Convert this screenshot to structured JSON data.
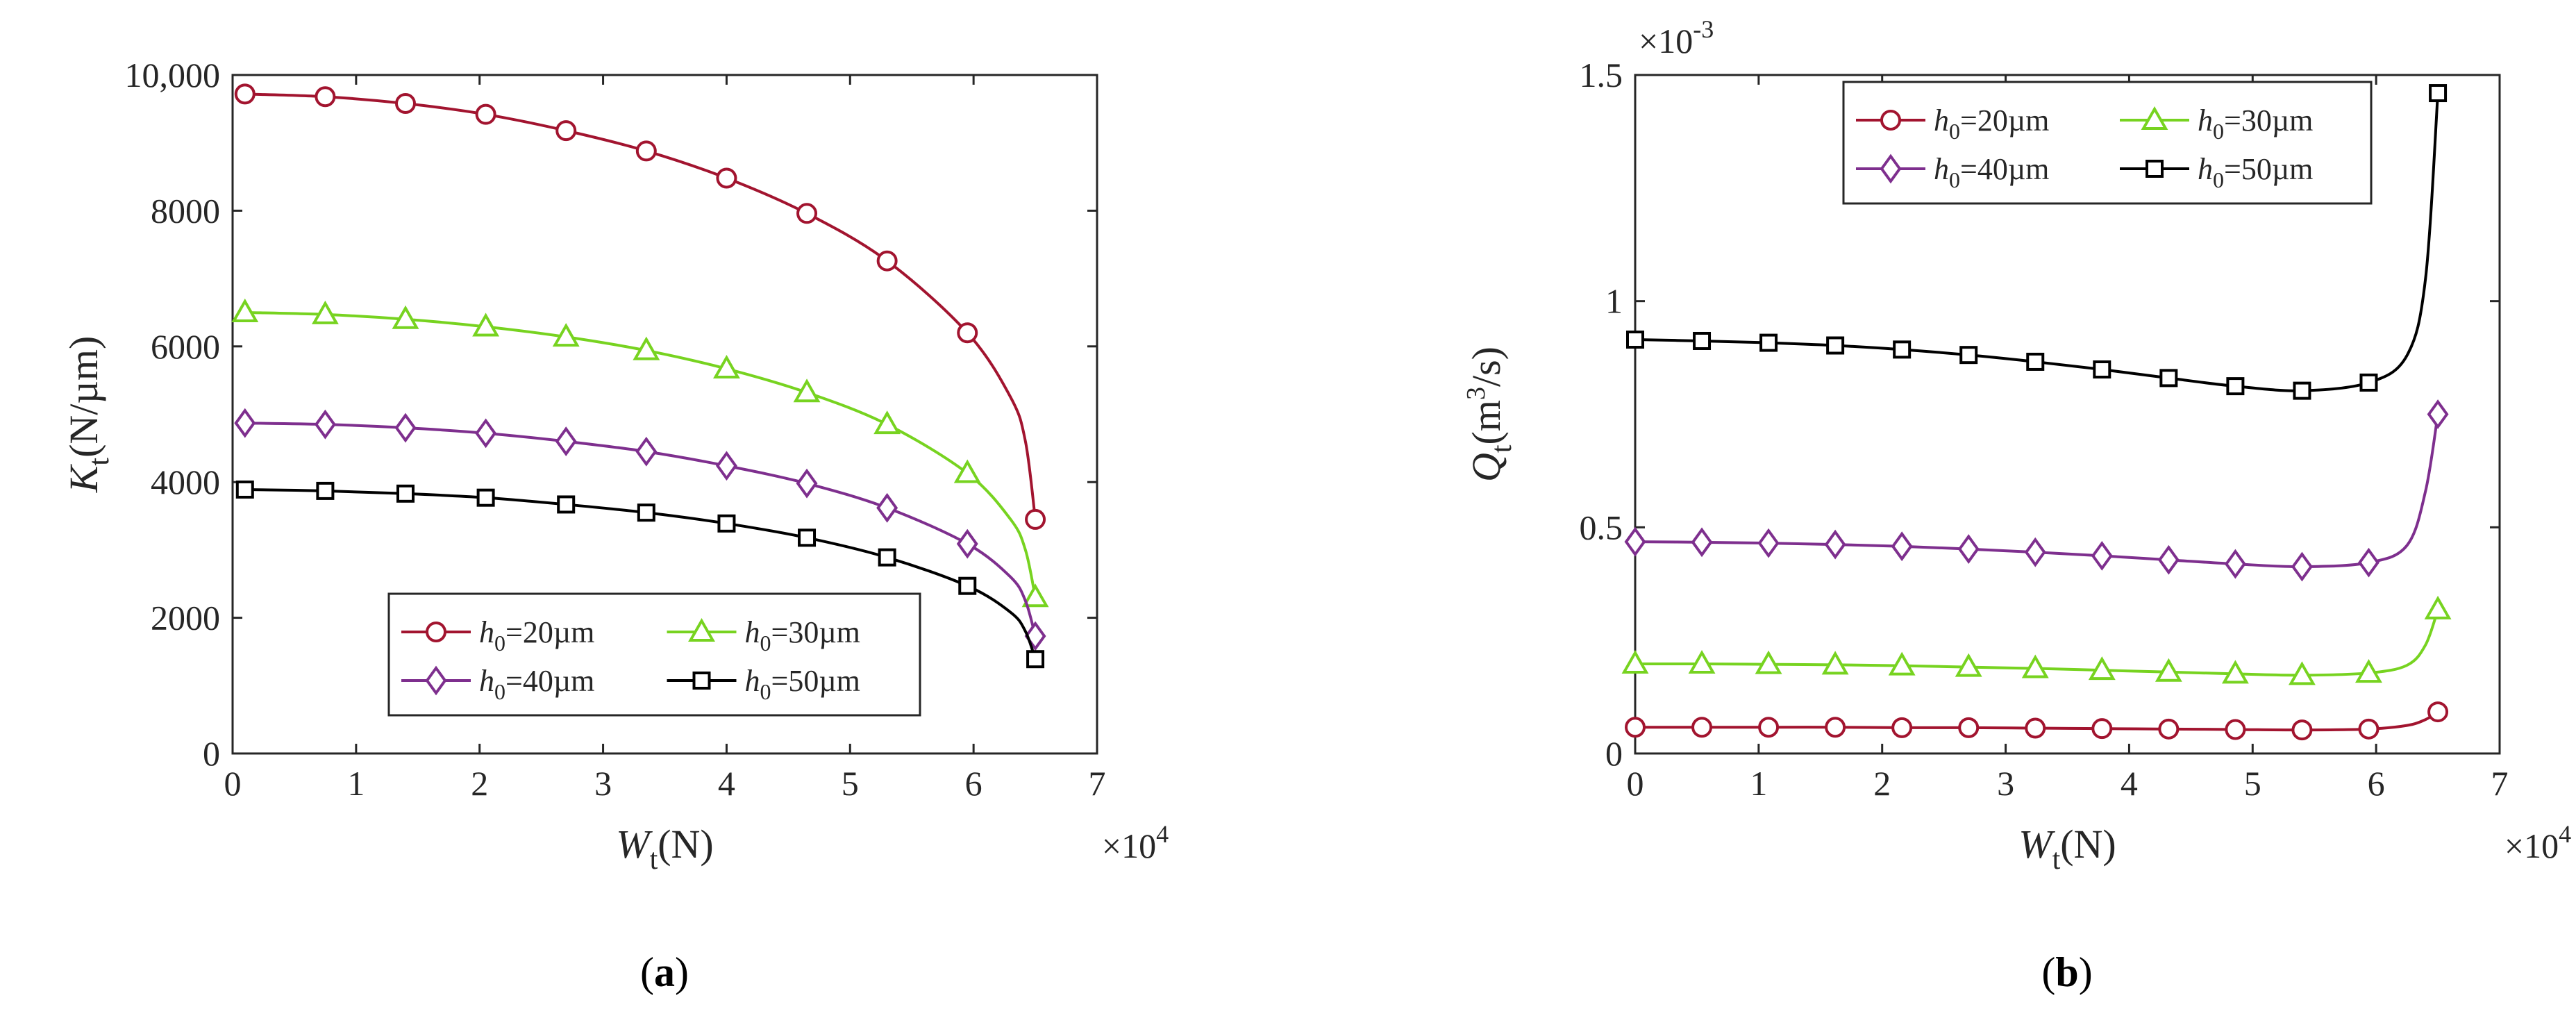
{
  "chart_data": [
    {
      "type": "line",
      "panel": "(a)",
      "caption_open": "(",
      "caption_letter": "a",
      "caption_close": ")",
      "xlabel_main": "W",
      "xlabel_sub": "t",
      "xlabel_unit": "(N)",
      "ylabel_main": "K",
      "ylabel_sub": "t",
      "ylabel_unit": "(N/µm)",
      "xlim": [
        0,
        70000
      ],
      "ylim": [
        0,
        10000
      ],
      "x_multiplier_base": "×10",
      "x_multiplier_exp": "4",
      "x_ticks": [
        {
          "v": 0,
          "label": "0"
        },
        {
          "v": 10000,
          "label": "1"
        },
        {
          "v": 20000,
          "label": "2"
        },
        {
          "v": 30000,
          "label": "3"
        },
        {
          "v": 40000,
          "label": "4"
        },
        {
          "v": 50000,
          "label": "5"
        },
        {
          "v": 60000,
          "label": "6"
        },
        {
          "v": 70000,
          "label": "7"
        }
      ],
      "y_ticks": [
        {
          "v": 0,
          "label": "0"
        },
        {
          "v": 2000,
          "label": "2000"
        },
        {
          "v": 4000,
          "label": "4000"
        },
        {
          "v": 6000,
          "label": "6000"
        },
        {
          "v": 8000,
          "label": "8000"
        },
        {
          "v": 10000,
          "label": "10,000"
        }
      ],
      "legend_position": "bottom-right",
      "series": [
        {
          "name": "h0=20µm",
          "label_main": "h",
          "label_sub": "0",
          "label_rest": "=20µm",
          "color": "#a2142f",
          "marker": "circle",
          "x": [
            1000,
            7500,
            14000,
            20500,
            27000,
            33500,
            40000,
            46500,
            53000,
            59500,
            63000,
            64200,
            65000
          ],
          "y": [
            9720,
            9680,
            9580,
            9420,
            9180,
            8880,
            8480,
            7960,
            7260,
            6200,
            5250,
            4600,
            3450
          ],
          "marker_idx": [
            0,
            1,
            2,
            3,
            4,
            5,
            6,
            7,
            8,
            9,
            12
          ]
        },
        {
          "name": "h0=30µm",
          "label_main": "h",
          "label_sub": "0",
          "label_rest": "=30µm",
          "color": "#77d320",
          "marker": "triangle",
          "x": [
            1000,
            7500,
            14000,
            20500,
            27000,
            33500,
            40000,
            46500,
            53000,
            59500,
            63000,
            64200,
            65000
          ],
          "y": [
            6500,
            6470,
            6400,
            6290,
            6140,
            5940,
            5670,
            5320,
            4850,
            4130,
            3450,
            3000,
            2300
          ],
          "marker_idx": [
            0,
            1,
            2,
            3,
            4,
            5,
            6,
            7,
            8,
            9,
            12
          ]
        },
        {
          "name": "h0=40µm",
          "label_main": "h",
          "label_sub": "0",
          "label_rest": "=40µm",
          "color": "#7e2f8e",
          "marker": "diamond",
          "x": [
            1000,
            7500,
            14000,
            20500,
            27000,
            33500,
            40000,
            46500,
            53000,
            59500,
            63000,
            64200,
            65000
          ],
          "y": [
            4870,
            4850,
            4800,
            4720,
            4600,
            4450,
            4240,
            3980,
            3620,
            3090,
            2600,
            2250,
            1730
          ],
          "marker_idx": [
            0,
            1,
            2,
            3,
            4,
            5,
            6,
            7,
            8,
            9,
            12
          ]
        },
        {
          "name": "h0=50µm",
          "label_main": "h",
          "label_sub": "0",
          "label_rest": "=50µm",
          "color": "#000000",
          "marker": "square",
          "x": [
            1000,
            7500,
            14000,
            20500,
            27000,
            33500,
            40000,
            46500,
            53000,
            59500,
            63000,
            64200,
            65000
          ],
          "y": [
            3890,
            3870,
            3830,
            3770,
            3670,
            3550,
            3390,
            3180,
            2890,
            2470,
            2080,
            1800,
            1390
          ],
          "marker_idx": [
            0,
            1,
            2,
            3,
            4,
            5,
            6,
            7,
            8,
            9,
            12
          ]
        }
      ]
    },
    {
      "type": "line",
      "panel": "(b)",
      "caption_open": "(",
      "caption_letter": "b",
      "caption_close": ")",
      "xlabel_main": "W",
      "xlabel_sub": "t",
      "xlabel_unit": "(N)",
      "ylabel_main": "Q",
      "ylabel_sub": "t",
      "ylabel_unit_pre": "(m",
      "ylabel_unit_sup": "3",
      "ylabel_unit_post": "/s)",
      "xlim": [
        0,
        70000
      ],
      "ylim": [
        0,
        0.0015
      ],
      "x_multiplier_base": "×10",
      "x_multiplier_exp": "4",
      "y_multiplier_base": "×10",
      "y_multiplier_exp": "-3",
      "x_ticks": [
        {
          "v": 0,
          "label": "0"
        },
        {
          "v": 10000,
          "label": "1"
        },
        {
          "v": 20000,
          "label": "2"
        },
        {
          "v": 30000,
          "label": "3"
        },
        {
          "v": 40000,
          "label": "4"
        },
        {
          "v": 50000,
          "label": "5"
        },
        {
          "v": 60000,
          "label": "6"
        },
        {
          "v": 70000,
          "label": "7"
        }
      ],
      "y_ticks": [
        {
          "v": 0,
          "label": "0"
        },
        {
          "v": 0.0005,
          "label": "0.5"
        },
        {
          "v": 0.001,
          "label": "1"
        },
        {
          "v": 0.0015,
          "label": "1.5"
        }
      ],
      "legend_position": "top-right",
      "series": [
        {
          "name": "h0=20µm",
          "label_main": "h",
          "label_sub": "0",
          "label_rest": "=20µm",
          "color": "#a2142f",
          "marker": "circle",
          "x": [
            0,
            5400,
            10800,
            16200,
            21600,
            27000,
            32400,
            37800,
            43200,
            48600,
            54000,
            59400,
            62500,
            64000,
            65000
          ],
          "y": [
            5.8e-05,
            5.8e-05,
            5.8e-05,
            5.8e-05,
            5.7e-05,
            5.7e-05,
            5.6e-05,
            5.5e-05,
            5.4e-05,
            5.3e-05,
            5.2e-05,
            5.4e-05,
            6.2e-05,
            7.5e-05,
            9.2e-05
          ],
          "marker_idx": [
            0,
            1,
            2,
            3,
            4,
            5,
            6,
            7,
            8,
            9,
            10,
            11,
            14
          ]
        },
        {
          "name": "h0=30µm",
          "label_main": "h",
          "label_sub": "0",
          "label_rest": "=30µm",
          "color": "#77d320",
          "marker": "triangle",
          "x": [
            0,
            5400,
            10800,
            16200,
            21600,
            27000,
            32400,
            37800,
            43200,
            48600,
            54000,
            59400,
            62500,
            64000,
            65000
          ],
          "y": [
            0.000198,
            0.000198,
            0.000197,
            0.000196,
            0.000194,
            0.000191,
            0.000188,
            0.000184,
            0.00018,
            0.000176,
            0.000173,
            0.000178,
            0.000195,
            0.00024,
            0.000318
          ],
          "marker_idx": [
            0,
            1,
            2,
            3,
            4,
            5,
            6,
            7,
            8,
            9,
            10,
            11,
            14
          ]
        },
        {
          "name": "h0=40µm",
          "label_main": "h",
          "label_sub": "0",
          "label_rest": "=40µm",
          "color": "#7e2f8e",
          "marker": "diamond",
          "x": [
            0,
            5400,
            10800,
            16200,
            21600,
            27000,
            32400,
            37800,
            43200,
            48600,
            54000,
            59400,
            62500,
            64000,
            65000
          ],
          "y": [
            0.000468,
            0.000467,
            0.000465,
            0.000462,
            0.000458,
            0.000452,
            0.000445,
            0.000437,
            0.000428,
            0.000419,
            0.000413,
            0.000422,
            0.00046,
            0.00058,
            0.00075
          ],
          "marker_idx": [
            0,
            1,
            2,
            3,
            4,
            5,
            6,
            7,
            8,
            9,
            10,
            11,
            14
          ]
        },
        {
          "name": "h0=50µm",
          "label_main": "h",
          "label_sub": "0",
          "label_rest": "=50µm",
          "color": "#000000",
          "marker": "square",
          "x": [
            0,
            5400,
            10800,
            16200,
            21600,
            27000,
            32400,
            37800,
            43200,
            48600,
            54000,
            59400,
            62500,
            64000,
            65000
          ],
          "y": [
            0.000915,
            0.000912,
            0.000908,
            0.000902,
            0.000893,
            0.000881,
            0.000866,
            0.000849,
            0.00083,
            0.000812,
            0.000802,
            0.00082,
            0.00088,
            0.00105,
            0.00146
          ],
          "marker_idx": [
            0,
            1,
            2,
            3,
            4,
            5,
            6,
            7,
            8,
            9,
            10,
            11,
            14
          ]
        }
      ]
    }
  ]
}
